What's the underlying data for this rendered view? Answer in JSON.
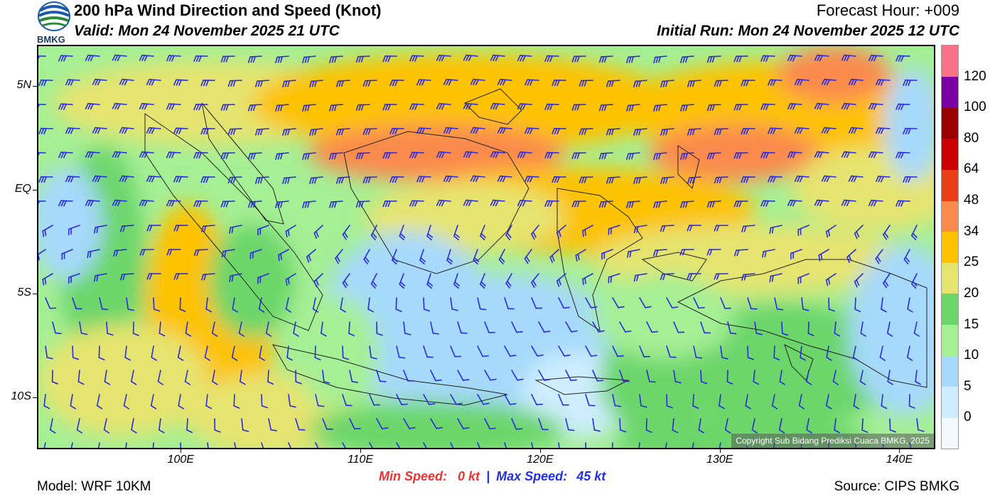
{
  "header": {
    "logo_text": "BMKG",
    "title": "200 hPa Wind Direction and Speed (Knot)",
    "valid": "Valid: Mon 24 November 2025 21 UTC",
    "forecast_hour": "Forecast Hour: +009",
    "initial_run": "Initial Run: Mon 24 November 2025 12 UTC"
  },
  "map": {
    "lat_labels": [
      {
        "label": "5N",
        "lat": 5
      },
      {
        "label": "EQ",
        "lat": 0
      },
      {
        "label": "5S",
        "lat": -5
      },
      {
        "label": "10S",
        "lat": -10
      }
    ],
    "lon_labels": [
      {
        "label": "100E",
        "lon": 100
      },
      {
        "label": "110E",
        "lon": 110
      },
      {
        "label": "120E",
        "lon": 120
      },
      {
        "label": "130E",
        "lon": 130
      },
      {
        "label": "140E",
        "lon": 140
      }
    ],
    "copyright": "Copyright Sub Bidang Prediksi Cuaca BMKG, 2025"
  },
  "legend": {
    "levels": [
      "0",
      "5",
      "10",
      "15",
      "20",
      "25",
      "34",
      "48",
      "64",
      "80",
      "100",
      "120"
    ],
    "colors": [
      "#f4f9ff",
      "#cdeeff",
      "#a6d9fb",
      "#a5ef94",
      "#6cd66a",
      "#e5e46f",
      "#fdc200",
      "#fb8a4d",
      "#ea3e16",
      "#cc0000",
      "#9a0000",
      "#7b00a3",
      "#fb7187"
    ]
  },
  "stats": {
    "min_label": "Min Speed:",
    "min_value": "0 kt",
    "separator": "|",
    "max_label": "Max Speed:",
    "max_value": "45 kt",
    "min_color": "#ee3333",
    "max_color": "#2233dd"
  },
  "footer": {
    "model": "Model: WRF 10KM",
    "source": "Source: CIPS BMKG"
  }
}
